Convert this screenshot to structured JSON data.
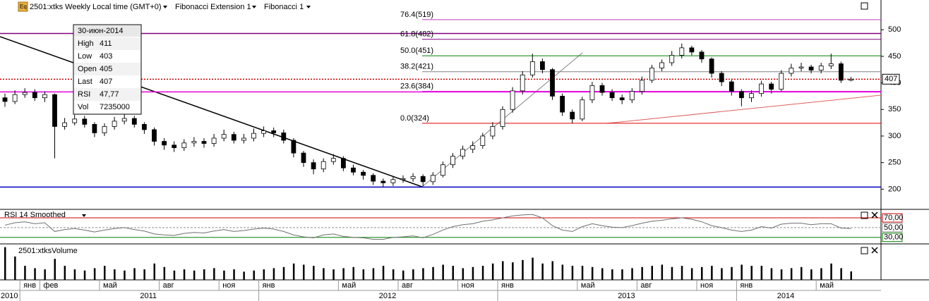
{
  "header": {
    "icon": "Eq",
    "instrument": "2501:xtks Weekly Local time (GMT+0)",
    "tool1": "Fibonacci Extension 1",
    "tool2": "Fibonacci 1"
  },
  "tooltip": {
    "date": "30-июн-2014",
    "rows": [
      [
        "High",
        "411"
      ],
      [
        "Low",
        "403"
      ],
      [
        "Open",
        "405"
      ],
      [
        "Last",
        "407"
      ],
      [
        "RSI",
        "47,77"
      ],
      [
        "Vol",
        "7235000"
      ]
    ]
  },
  "chart_data": [
    {
      "type": "candlestick",
      "categories": [
        null,
        null,
        "янв",
        null,
        "фев",
        null,
        null,
        null,
        null,
        null,
        "май",
        null,
        null,
        null,
        null,
        null,
        "авг",
        null,
        null,
        null,
        null,
        null,
        "ноя",
        null,
        null,
        null,
        "янв",
        null,
        null,
        null,
        null,
        null,
        null,
        null,
        "май",
        null,
        null,
        null,
        null,
        null,
        "авг",
        null,
        null,
        null,
        null,
        null,
        "ноя",
        null,
        null,
        null,
        "янв",
        null,
        null,
        null,
        null,
        null,
        null,
        null,
        "май",
        null,
        null,
        null,
        null,
        null,
        "авг",
        null,
        null,
        null,
        null,
        null,
        "ноя",
        null,
        null,
        null,
        "янв",
        null,
        null,
        null,
        null,
        null,
        null,
        null,
        "май",
        null,
        null,
        null
      ],
      "year_labels": [
        "2010",
        null,
        null,
        null,
        null,
        null,
        null,
        null,
        null,
        null,
        null,
        null,
        null,
        null,
        "2011",
        null,
        null,
        null,
        null,
        null,
        null,
        null,
        null,
        null,
        null,
        null,
        null,
        null,
        null,
        null,
        null,
        null,
        null,
        null,
        null,
        null,
        null,
        null,
        "2012",
        null,
        null,
        null,
        null,
        null,
        null,
        null,
        null,
        null,
        null,
        null,
        null,
        null,
        null,
        null,
        null,
        null,
        null,
        null,
        null,
        null,
        null,
        null,
        "2013",
        null,
        null,
        null,
        null,
        null,
        null,
        null,
        null,
        null,
        null,
        null,
        null,
        null,
        null,
        null,
        "2014",
        null,
        null,
        null,
        null,
        null,
        null,
        null
      ],
      "open": [
        372,
        365,
        378,
        382,
        372,
        378,
        318,
        325,
        332,
        322,
        306,
        318,
        328,
        333,
        322,
        312,
        290,
        283,
        278,
        287,
        290,
        286,
        296,
        303,
        292,
        296,
        305,
        310,
        306,
        292,
        268,
        250,
        238,
        252,
        258,
        240,
        232,
        226,
        215,
        212,
        218,
        220,
        224,
        214,
        226,
        246,
        262,
        275,
        282,
        300,
        318,
        350,
        385,
        415,
        440,
        425,
        375,
        345,
        332,
        368,
        395,
        382,
        372,
        368,
        384,
        405,
        428,
        438,
        452,
        466,
        458,
        445,
        418,
        402,
        384,
        372,
        380,
        398,
        388,
        418,
        428,
        430,
        424,
        432,
        436,
        405
      ],
      "high": [
        380,
        386,
        390,
        388,
        384,
        380,
        334,
        340,
        338,
        326,
        324,
        336,
        342,
        338,
        326,
        316,
        296,
        290,
        294,
        298,
        296,
        304,
        312,
        308,
        304,
        314,
        318,
        316,
        312,
        296,
        272,
        256,
        258,
        266,
        262,
        246,
        236,
        230,
        220,
        224,
        226,
        230,
        228,
        232,
        252,
        268,
        282,
        290,
        306,
        326,
        356,
        392,
        422,
        455,
        446,
        428,
        380,
        350,
        374,
        402,
        400,
        388,
        378,
        390,
        412,
        434,
        444,
        460,
        474,
        470,
        462,
        448,
        422,
        406,
        388,
        386,
        404,
        402,
        424,
        436,
        438,
        434,
        438,
        455,
        440,
        411
      ],
      "low": [
        355,
        360,
        372,
        366,
        364,
        258,
        312,
        320,
        316,
        298,
        300,
        312,
        322,
        316,
        304,
        282,
        274,
        270,
        272,
        280,
        278,
        280,
        290,
        286,
        286,
        290,
        298,
        298,
        286,
        260,
        242,
        228,
        232,
        246,
        234,
        226,
        218,
        208,
        204,
        206,
        212,
        214,
        206,
        208,
        222,
        240,
        256,
        268,
        276,
        294,
        312,
        344,
        378,
        410,
        418,
        368,
        338,
        324,
        328,
        362,
        376,
        366,
        360,
        362,
        378,
        400,
        422,
        432,
        446,
        452,
        438,
        410,
        394,
        376,
        356,
        364,
        374,
        380,
        384,
        412,
        422,
        418,
        418,
        426,
        400,
        403
      ],
      "close": [
        365,
        378,
        382,
        372,
        378,
        318,
        325,
        332,
        322,
        306,
        318,
        328,
        333,
        322,
        312,
        290,
        283,
        278,
        287,
        290,
        286,
        296,
        303,
        292,
        296,
        305,
        310,
        306,
        292,
        268,
        250,
        238,
        252,
        258,
        240,
        232,
        226,
        215,
        212,
        218,
        220,
        224,
        214,
        226,
        246,
        262,
        275,
        282,
        300,
        318,
        350,
        385,
        415,
        440,
        425,
        375,
        345,
        332,
        368,
        395,
        382,
        372,
        368,
        384,
        405,
        428,
        438,
        452,
        466,
        458,
        445,
        418,
        402,
        384,
        372,
        380,
        398,
        388,
        418,
        428,
        430,
        424,
        432,
        436,
        405,
        407
      ],
      "up_color": "#ffffff",
      "down_color": "#000000",
      "ylim": [
        162,
        556
      ],
      "yticks": [
        200,
        250,
        300,
        350,
        400,
        450,
        500
      ],
      "levels": [
        {
          "label": "76.4(519)",
          "value": 519,
          "color": "#c040c0"
        },
        {
          "label": "61.8(482)",
          "value": 482,
          "color": "#800080"
        },
        {
          "label": "50.0(451)",
          "value": 451,
          "color": "#008000"
        },
        {
          "label": "38.2(421)",
          "value": 421,
          "color": "#808080"
        },
        {
          "label": "23.6(384)",
          "value": 384,
          "color": "#e000e0"
        },
        {
          "label": "0.0(324)",
          "value": 324,
          "color": "#e00000"
        }
      ],
      "hlines": [
        {
          "value": 493,
          "color": "#800080"
        },
        {
          "value": 383,
          "color": "#e000e0"
        },
        {
          "value": 204,
          "color": "#0000c0"
        }
      ],
      "last_price": 407,
      "last_color": "#d00000"
    },
    {
      "type": "line",
      "title": "RSI 14 Smoothed",
      "color": "#707070",
      "values": [
        55,
        60,
        62,
        58,
        60,
        42,
        46,
        48,
        45,
        41,
        45,
        48,
        50,
        46,
        43,
        37,
        35,
        34,
        38,
        40,
        39,
        43,
        46,
        42,
        44,
        47,
        49,
        47,
        42,
        35,
        31,
        29,
        35,
        37,
        32,
        30,
        29,
        26,
        26,
        30,
        31,
        33,
        29,
        36,
        45,
        52,
        56,
        58,
        63,
        66,
        70,
        74,
        76,
        77,
        70,
        54,
        45,
        42,
        52,
        58,
        54,
        51,
        50,
        54,
        59,
        63,
        65,
        68,
        70,
        67,
        62,
        54,
        50,
        45,
        42,
        45,
        52,
        49,
        57,
        59,
        59,
        56,
        58,
        58,
        49,
        48
      ],
      "ylim": [
        18,
        86
      ],
      "yticks": [
        {
          "value": 70,
          "label": "70,00",
          "color": "#d00000"
        },
        {
          "value": 50,
          "label": "50,00",
          "color": "#909090"
        },
        {
          "value": 30,
          "label": "30,00",
          "color": "#008000"
        }
      ]
    },
    {
      "type": "bar",
      "title": "2501:xtksVolume",
      "color": "#000000",
      "values": [
        28000000,
        20000000,
        12000000,
        10000000,
        9000000,
        18000000,
        12000000,
        9000000,
        8000000,
        10000000,
        12000000,
        9000000,
        8000000,
        10000000,
        9000000,
        14000000,
        11000000,
        8000000,
        9000000,
        8000000,
        9000000,
        10000000,
        8000000,
        9000000,
        7000000,
        8000000,
        9000000,
        10000000,
        11000000,
        14000000,
        13000000,
        12000000,
        10000000,
        9000000,
        10000000,
        11000000,
        9000000,
        10000000,
        12000000,
        9000000,
        8000000,
        9000000,
        10000000,
        11000000,
        13000000,
        12000000,
        10000000,
        11000000,
        12000000,
        14000000,
        16000000,
        15000000,
        17000000,
        19000000,
        14000000,
        16000000,
        13000000,
        12000000,
        12000000,
        11000000,
        10000000,
        9000000,
        9000000,
        10000000,
        11000000,
        12000000,
        13000000,
        11000000,
        12000000,
        10000000,
        11000000,
        12000000,
        10000000,
        11000000,
        13000000,
        12000000,
        12000000,
        10000000,
        9000000,
        10000000,
        11000000,
        9000000,
        10000000,
        14000000,
        10000000,
        7235000
      ],
      "ylim": [
        0,
        29000000
      ]
    }
  ]
}
